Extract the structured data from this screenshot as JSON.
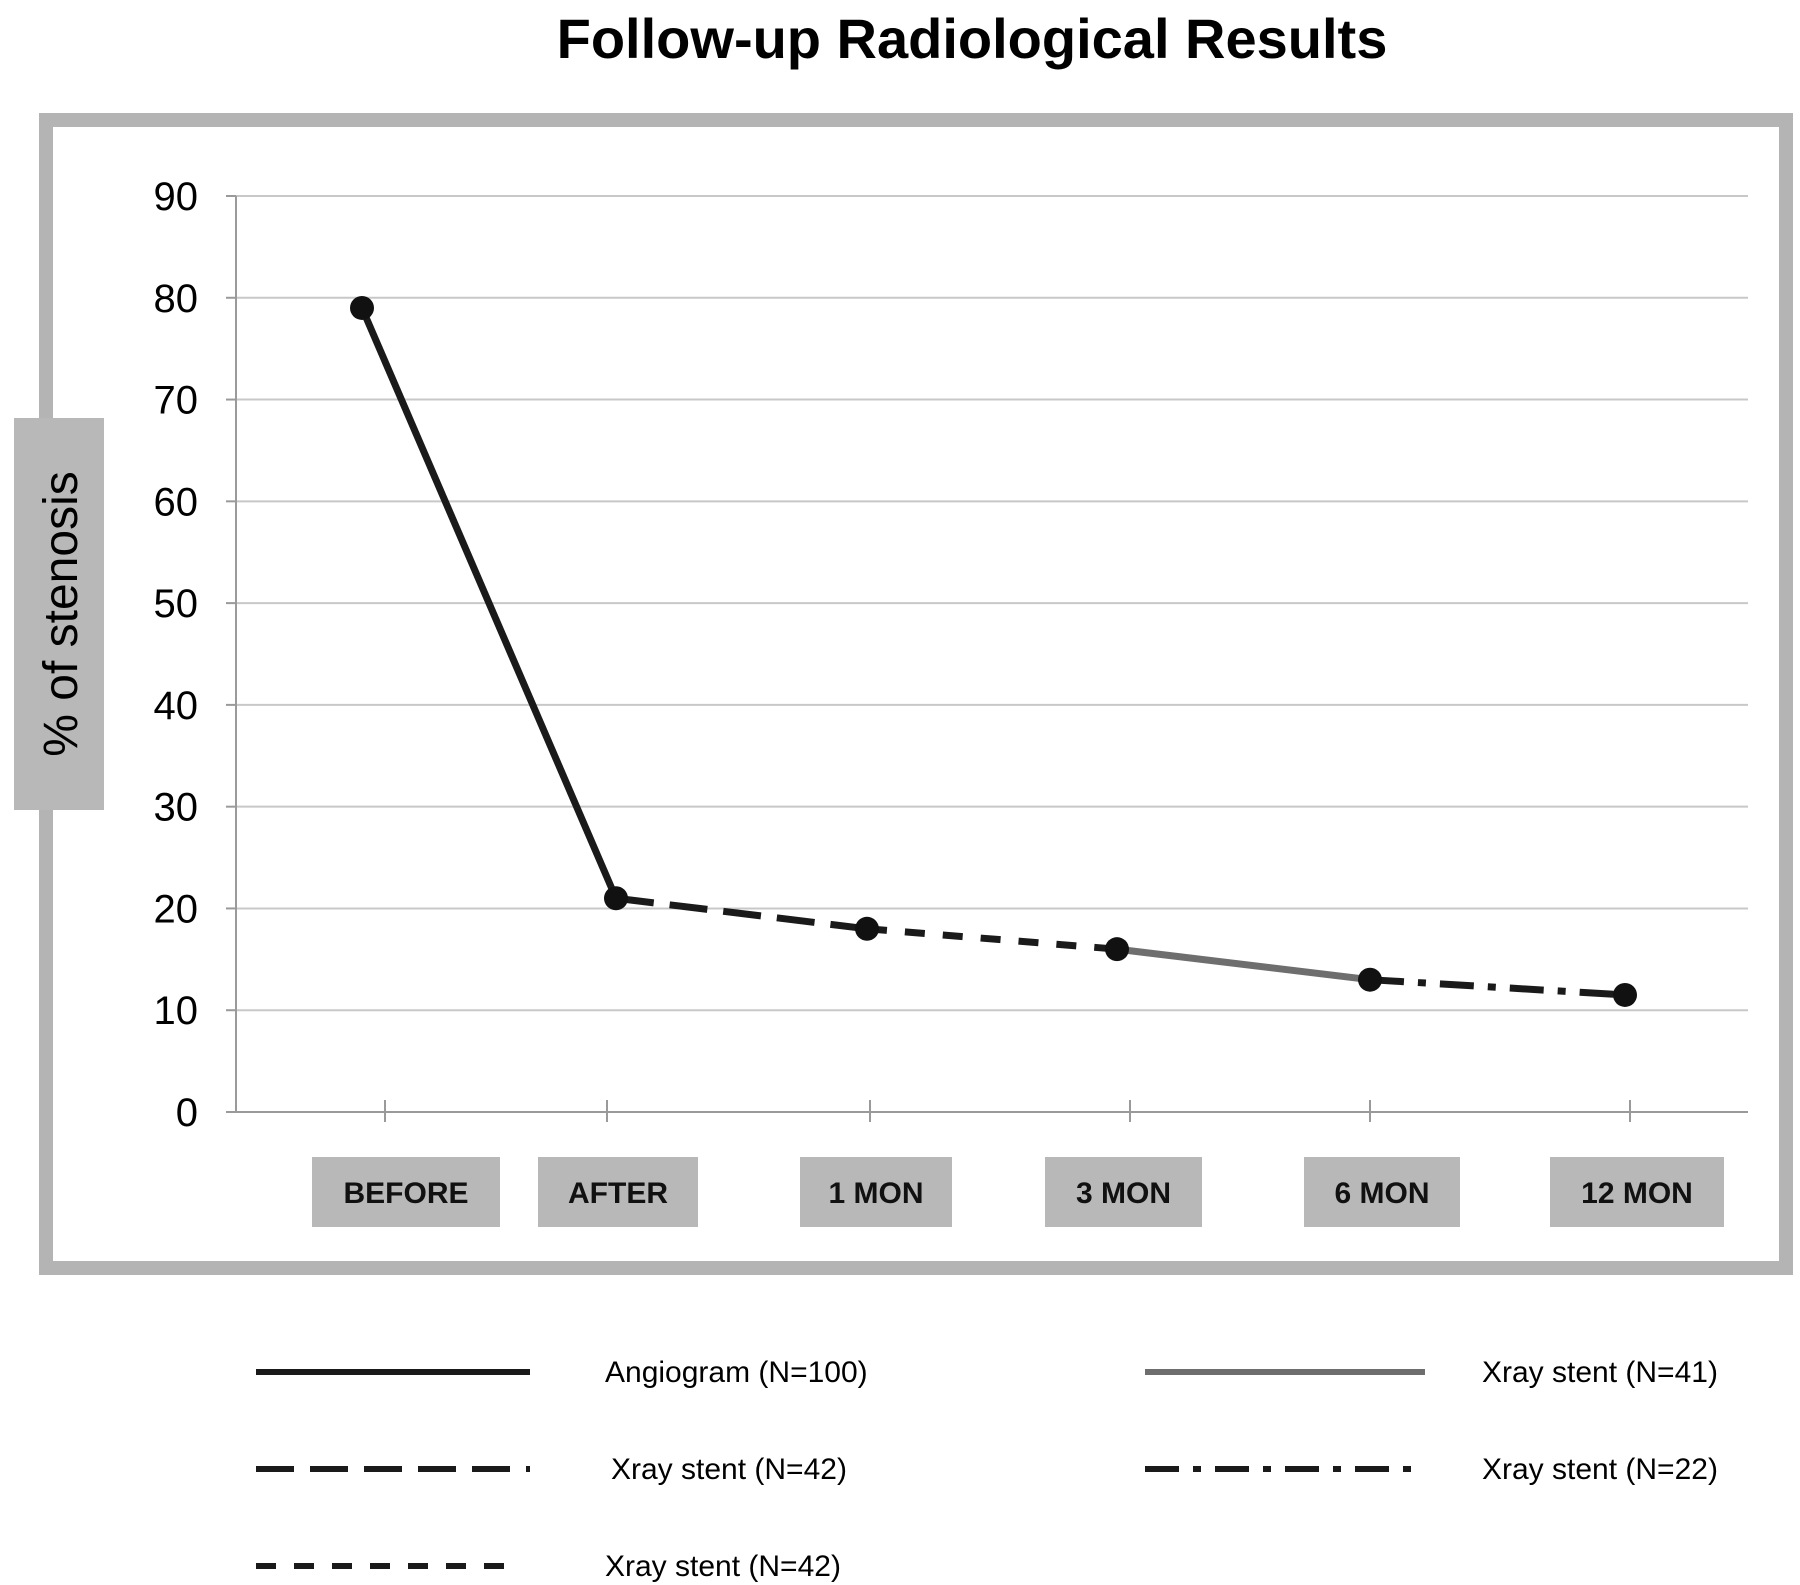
{
  "chart_data": {
    "type": "line",
    "title": "Follow-up Radiological Results",
    "ylabel": "% of stenosis",
    "xlabel": "",
    "ylim": [
      0,
      90
    ],
    "yticks": [
      0,
      10,
      20,
      30,
      40,
      50,
      60,
      70,
      80,
      90
    ],
    "categories": [
      "BEFORE",
      "AFTER",
      "1 MON",
      "3 MON",
      "6 MON",
      "12 MON"
    ],
    "grid": true,
    "legend_position": "bottom",
    "points": [
      79,
      21,
      18,
      16,
      13,
      11.5
    ],
    "series": [
      {
        "name": "Angiogram (N=100)",
        "style": "solid",
        "color": "#1a1a1a",
        "from": 0,
        "to": 1
      },
      {
        "name": "Xray stent (N=42)",
        "style": "long-dash",
        "color": "#1a1a1a",
        "from": 1,
        "to": 2
      },
      {
        "name": "Xray stent (N=42)",
        "style": "short-dash",
        "color": "#1a1a1a",
        "from": 2,
        "to": 3
      },
      {
        "name": "Xray stent (N=41)",
        "style": "solid-gray",
        "color": "#6e6e6e",
        "from": 3,
        "to": 4
      },
      {
        "name": "Xray stent (N=22)",
        "style": "dash-dot",
        "color": "#1a1a1a",
        "from": 4,
        "to": 5
      }
    ],
    "legend_order": [
      0,
      3,
      1,
      4,
      2
    ]
  }
}
